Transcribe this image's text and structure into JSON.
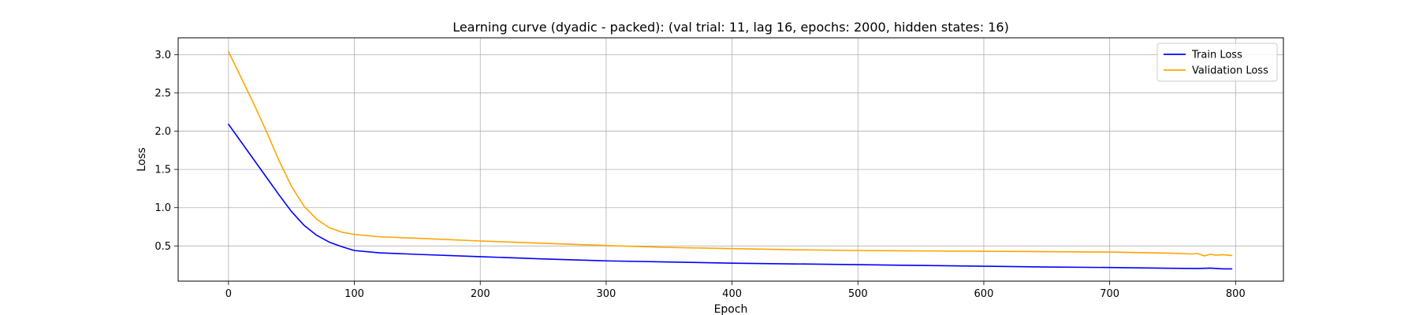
{
  "chart_data": {
    "type": "line",
    "title": "Learning curve (dyadic - packed): (val trial: 11, lag 16, epochs: 2000, hidden states: 16)",
    "xlabel": "Epoch",
    "ylabel": "Loss",
    "xlim": [
      -40,
      838
    ],
    "ylim": [
      0.04,
      3.22
    ],
    "xticks": [
      0,
      100,
      200,
      300,
      400,
      500,
      600,
      700,
      800
    ],
    "yticks": [
      0.5,
      1.0,
      1.5,
      2.0,
      2.5,
      3.0
    ],
    "xtick_labels": [
      "0",
      "100",
      "200",
      "300",
      "400",
      "500",
      "600",
      "700",
      "800"
    ],
    "ytick_labels": [
      "0.5",
      "1.0",
      "1.5",
      "2.0",
      "2.5",
      "3.0"
    ],
    "grid": true,
    "legend_position": "top-right",
    "series": [
      {
        "name": "Train Loss",
        "color": "#0000ff",
        "x": [
          0,
          10,
          20,
          30,
          40,
          50,
          60,
          70,
          80,
          90,
          100,
          120,
          150,
          200,
          250,
          300,
          350,
          400,
          450,
          500,
          550,
          600,
          650,
          700,
          750,
          770,
          780,
          790,
          797
        ],
        "y": [
          2.09,
          1.86,
          1.63,
          1.4,
          1.17,
          0.95,
          0.77,
          0.64,
          0.55,
          0.49,
          0.44,
          0.41,
          0.39,
          0.36,
          0.33,
          0.305,
          0.29,
          0.275,
          0.265,
          0.255,
          0.245,
          0.235,
          0.225,
          0.218,
          0.208,
          0.205,
          0.21,
          0.2,
          0.2
        ]
      },
      {
        "name": "Validation Loss",
        "color": "#ffa500",
        "x": [
          0,
          10,
          20,
          30,
          40,
          50,
          60,
          70,
          80,
          90,
          100,
          120,
          150,
          200,
          250,
          300,
          350,
          400,
          450,
          500,
          550,
          600,
          650,
          700,
          750,
          765,
          770,
          775,
          780,
          785,
          790,
          797
        ],
        "y": [
          3.04,
          2.7,
          2.36,
          2.0,
          1.62,
          1.28,
          1.02,
          0.85,
          0.74,
          0.68,
          0.65,
          0.62,
          0.6,
          0.565,
          0.535,
          0.505,
          0.48,
          0.465,
          0.45,
          0.44,
          0.435,
          0.43,
          0.425,
          0.42,
          0.405,
          0.395,
          0.4,
          0.37,
          0.39,
          0.38,
          0.385,
          0.375
        ]
      }
    ]
  }
}
